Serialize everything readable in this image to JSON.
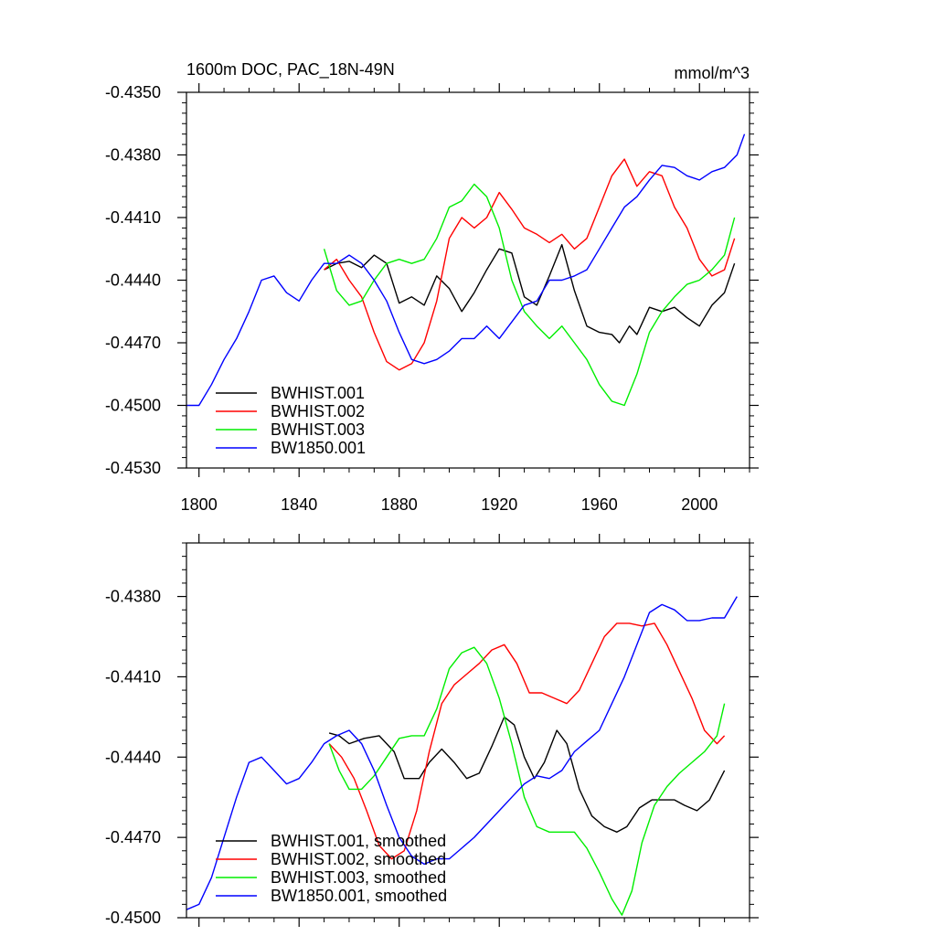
{
  "chart_data": [
    {
      "type": "line",
      "title_left": "1600m DOC, PAC_18N-49N",
      "title_right": "mmol/m^3",
      "xlim": [
        1795,
        2020
      ],
      "ylim": [
        -0.453,
        -0.435
      ],
      "xticks": [
        1800,
        1840,
        1880,
        1920,
        1960,
        2000
      ],
      "xtick_labels": [
        "1800",
        "1840",
        "1880",
        "1920",
        "1960",
        "2000"
      ],
      "yticks": [
        -0.453,
        -0.45,
        -0.447,
        -0.444,
        -0.441,
        -0.438,
        -0.435
      ],
      "ytick_labels": [
        "-0.4530",
        "-0.4500",
        "-0.4470",
        "-0.4440",
        "-0.4410",
        "-0.4380",
        "-0.4350"
      ],
      "legend_position": "lower-left",
      "series": [
        {
          "name": "BWHIST.001",
          "color": "#000000",
          "x": [
            1850,
            1855,
            1860,
            1865,
            1870,
            1875,
            1880,
            1885,
            1890,
            1895,
            1900,
            1905,
            1910,
            1915,
            1920,
            1925,
            1930,
            1935,
            1940,
            1945,
            1950,
            1955,
            1960,
            1965,
            1968,
            1972,
            1975,
            1980,
            1985,
            1990,
            1995,
            2000,
            2005,
            2010,
            2014
          ],
          "y": [
            -0.4435,
            -0.4432,
            -0.4431,
            -0.4434,
            -0.4428,
            -0.4432,
            -0.4451,
            -0.4448,
            -0.4452,
            -0.4438,
            -0.4444,
            -0.4455,
            -0.4446,
            -0.4435,
            -0.4425,
            -0.4427,
            -0.4448,
            -0.4452,
            -0.4438,
            -0.4423,
            -0.4445,
            -0.4462,
            -0.4465,
            -0.4466,
            -0.447,
            -0.4462,
            -0.4466,
            -0.4453,
            -0.4455,
            -0.4453,
            -0.4458,
            -0.4462,
            -0.4452,
            -0.4446,
            -0.4432
          ]
        },
        {
          "name": "BWHIST.002",
          "color": "#ff0000",
          "x": [
            1850,
            1855,
            1860,
            1865,
            1870,
            1875,
            1880,
            1885,
            1890,
            1895,
            1900,
            1905,
            1910,
            1915,
            1920,
            1925,
            1930,
            1935,
            1940,
            1945,
            1950,
            1955,
            1960,
            1965,
            1970,
            1975,
            1980,
            1985,
            1990,
            1995,
            2000,
            2005,
            2010,
            2014
          ],
          "y": [
            -0.4435,
            -0.443,
            -0.444,
            -0.4448,
            -0.4465,
            -0.4479,
            -0.4483,
            -0.448,
            -0.447,
            -0.445,
            -0.442,
            -0.441,
            -0.4415,
            -0.441,
            -0.4398,
            -0.4406,
            -0.4415,
            -0.4418,
            -0.4422,
            -0.4418,
            -0.4425,
            -0.442,
            -0.4405,
            -0.439,
            -0.4382,
            -0.4395,
            -0.4388,
            -0.439,
            -0.4405,
            -0.4415,
            -0.443,
            -0.4438,
            -0.4435,
            -0.442
          ]
        },
        {
          "name": "BWHIST.003",
          "color": "#00ee00",
          "x": [
            1850,
            1855,
            1860,
            1865,
            1870,
            1875,
            1880,
            1885,
            1890,
            1895,
            1900,
            1905,
            1910,
            1915,
            1920,
            1925,
            1930,
            1935,
            1940,
            1945,
            1950,
            1955,
            1960,
            1965,
            1970,
            1975,
            1980,
            1985,
            1990,
            1995,
            2000,
            2005,
            2010,
            2014
          ],
          "y": [
            -0.4425,
            -0.4445,
            -0.4452,
            -0.445,
            -0.444,
            -0.4432,
            -0.443,
            -0.4432,
            -0.443,
            -0.442,
            -0.4405,
            -0.4402,
            -0.4394,
            -0.44,
            -0.4415,
            -0.444,
            -0.4455,
            -0.4462,
            -0.4468,
            -0.4462,
            -0.447,
            -0.4478,
            -0.449,
            -0.4498,
            -0.45,
            -0.4485,
            -0.4465,
            -0.4455,
            -0.4448,
            -0.4442,
            -0.444,
            -0.4435,
            -0.4428,
            -0.441
          ]
        },
        {
          "name": "BW1850.001",
          "color": "#0000ff",
          "x": [
            1795,
            1800,
            1805,
            1810,
            1815,
            1820,
            1825,
            1830,
            1835,
            1840,
            1845,
            1850,
            1855,
            1860,
            1865,
            1870,
            1875,
            1880,
            1885,
            1890,
            1895,
            1900,
            1905,
            1910,
            1915,
            1920,
            1925,
            1930,
            1935,
            1940,
            1945,
            1950,
            1955,
            1960,
            1965,
            1970,
            1975,
            1980,
            1985,
            1990,
            1995,
            2000,
            2005,
            2010,
            2015,
            2018
          ],
          "y": [
            -0.45,
            -0.45,
            -0.449,
            -0.4478,
            -0.4468,
            -0.4455,
            -0.444,
            -0.4438,
            -0.4446,
            -0.445,
            -0.444,
            -0.4432,
            -0.4432,
            -0.4428,
            -0.4432,
            -0.444,
            -0.445,
            -0.4465,
            -0.4478,
            -0.448,
            -0.4478,
            -0.4474,
            -0.4468,
            -0.4468,
            -0.4462,
            -0.4468,
            -0.446,
            -0.4452,
            -0.445,
            -0.444,
            -0.444,
            -0.4438,
            -0.4435,
            -0.4425,
            -0.4415,
            -0.4405,
            -0.44,
            -0.4392,
            -0.4385,
            -0.4386,
            -0.439,
            -0.4392,
            -0.4388,
            -0.4386,
            -0.438,
            -0.437
          ]
        }
      ]
    },
    {
      "type": "line",
      "xlim": [
        1795,
        2020
      ],
      "ylim": [
        -0.45,
        -0.436
      ],
      "xticks": [
        1800,
        1840,
        1880,
        1920,
        1960,
        2000
      ],
      "yticks": [
        -0.45,
        -0.447,
        -0.444,
        -0.441,
        -0.438
      ],
      "ytick_labels": [
        "-0.4500",
        "-0.4470",
        "-0.4440",
        "-0.4410",
        "-0.4380"
      ],
      "legend_position": "lower-left",
      "series": [
        {
          "name": "BWHIST.001, smoothed",
          "color": "#000000",
          "x": [
            1852,
            1856,
            1860,
            1866,
            1872,
            1878,
            1882,
            1888,
            1892,
            1897,
            1902,
            1907,
            1912,
            1917,
            1922,
            1926,
            1930,
            1934,
            1938,
            1943,
            1947,
            1952,
            1957,
            1962,
            1967,
            1971,
            1976,
            1981,
            1986,
            1990,
            1994,
            1999,
            2004,
            2010
          ],
          "y": [
            -0.4431,
            -0.4432,
            -0.4435,
            -0.4433,
            -0.4432,
            -0.4438,
            -0.4448,
            -0.4448,
            -0.4442,
            -0.4437,
            -0.4442,
            -0.4448,
            -0.4446,
            -0.4436,
            -0.4425,
            -0.4428,
            -0.444,
            -0.4448,
            -0.4442,
            -0.443,
            -0.4435,
            -0.4452,
            -0.4462,
            -0.4466,
            -0.4468,
            -0.4466,
            -0.4459,
            -0.4456,
            -0.4456,
            -0.4456,
            -0.4458,
            -0.446,
            -0.4456,
            -0.4445
          ]
        },
        {
          "name": "BWHIST.002, smoothed",
          "color": "#ff0000",
          "x": [
            1852,
            1857,
            1862,
            1867,
            1872,
            1877,
            1882,
            1887,
            1892,
            1897,
            1902,
            1907,
            1912,
            1917,
            1922,
            1927,
            1932,
            1937,
            1942,
            1947,
            1952,
            1957,
            1962,
            1967,
            1972,
            1977,
            1982,
            1987,
            1992,
            1997,
            2002,
            2007,
            2010
          ],
          "y": [
            -0.4435,
            -0.444,
            -0.4448,
            -0.446,
            -0.4473,
            -0.4478,
            -0.4475,
            -0.446,
            -0.4438,
            -0.442,
            -0.4413,
            -0.4409,
            -0.4405,
            -0.44,
            -0.4398,
            -0.4405,
            -0.4416,
            -0.4416,
            -0.4418,
            -0.442,
            -0.4415,
            -0.4405,
            -0.4395,
            -0.439,
            -0.439,
            -0.4391,
            -0.439,
            -0.4398,
            -0.4408,
            -0.4418,
            -0.443,
            -0.4435,
            -0.4432
          ]
        },
        {
          "name": "BWHIST.003, smoothed",
          "color": "#00ee00",
          "x": [
            1852,
            1856,
            1860,
            1865,
            1870,
            1875,
            1880,
            1885,
            1890,
            1895,
            1900,
            1905,
            1910,
            1915,
            1920,
            1925,
            1930,
            1935,
            1940,
            1945,
            1950,
            1955,
            1960,
            1965,
            1969,
            1973,
            1977,
            1982,
            1987,
            1992,
            1997,
            2002,
            2007,
            2010
          ],
          "y": [
            -0.4435,
            -0.4445,
            -0.4452,
            -0.4452,
            -0.4447,
            -0.444,
            -0.4433,
            -0.4432,
            -0.4432,
            -0.4422,
            -0.4407,
            -0.4401,
            -0.4399,
            -0.4405,
            -0.4418,
            -0.4435,
            -0.4455,
            -0.4466,
            -0.4468,
            -0.4468,
            -0.4468,
            -0.4474,
            -0.4483,
            -0.4493,
            -0.4499,
            -0.449,
            -0.4472,
            -0.4458,
            -0.4451,
            -0.4446,
            -0.4442,
            -0.4438,
            -0.4432,
            -0.442
          ]
        },
        {
          "name": "BW1850.001, smoothed",
          "color": "#0000ff",
          "x": [
            1795,
            1800,
            1805,
            1810,
            1815,
            1820,
            1825,
            1830,
            1835,
            1840,
            1845,
            1850,
            1855,
            1860,
            1865,
            1870,
            1875,
            1880,
            1885,
            1890,
            1895,
            1900,
            1905,
            1910,
            1915,
            1920,
            1925,
            1930,
            1935,
            1940,
            1945,
            1950,
            1955,
            1960,
            1965,
            1970,
            1975,
            1980,
            1985,
            1990,
            1995,
            2000,
            2005,
            2010,
            2015
          ],
          "y": [
            -0.4497,
            -0.4495,
            -0.4485,
            -0.447,
            -0.4455,
            -0.4442,
            -0.444,
            -0.4445,
            -0.445,
            -0.4448,
            -0.4442,
            -0.4435,
            -0.4432,
            -0.443,
            -0.4435,
            -0.4445,
            -0.4458,
            -0.447,
            -0.4477,
            -0.448,
            -0.4478,
            -0.4478,
            -0.4474,
            -0.447,
            -0.4465,
            -0.446,
            -0.4455,
            -0.445,
            -0.4447,
            -0.4448,
            -0.4445,
            -0.4438,
            -0.4434,
            -0.443,
            -0.442,
            -0.441,
            -0.4398,
            -0.4386,
            -0.4383,
            -0.4385,
            -0.4389,
            -0.4389,
            -0.4388,
            -0.4388,
            -0.438
          ]
        }
      ]
    }
  ]
}
